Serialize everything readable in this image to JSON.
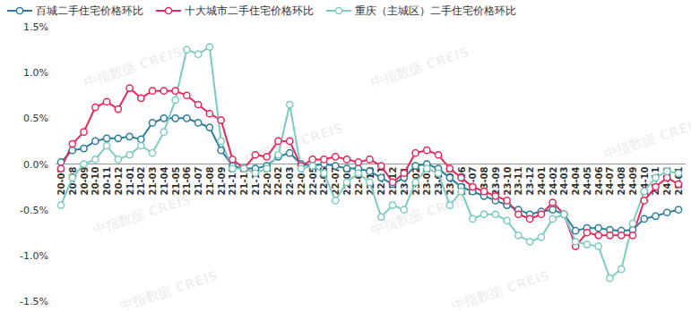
{
  "chart_data": {
    "type": "line",
    "watermark": "中指数据 CREIS",
    "categories": [
      "20-07",
      "20-08",
      "20-09",
      "20-10",
      "20-11",
      "20-12",
      "21-01",
      "21-02",
      "21-03",
      "21-04",
      "21-05",
      "21-06",
      "21-07",
      "21-08",
      "21-09",
      "21-10",
      "21-11",
      "21-12",
      "22-01",
      "22-02",
      "22-03",
      "22-04",
      "22-05",
      "22-06",
      "22-07",
      "22-08",
      "22-09",
      "22-10",
      "22-11",
      "22-12",
      "23-01",
      "23-02",
      "23-03",
      "23-04",
      "23-05",
      "23-06",
      "23-07",
      "23-08",
      "23-09",
      "23-10",
      "23-11",
      "23-12",
      "24-01",
      "24-02",
      "24-03",
      "24-04",
      "24-05",
      "24-06",
      "24-07",
      "24-08",
      "24-09",
      "24-10",
      "24-11",
      "24-12",
      "25-01"
    ],
    "series": [
      {
        "name": "百城二手住宅价格环比",
        "color": "#2b7d9c",
        "marker": "circle",
        "values": [
          0.02,
          0.15,
          0.17,
          0.25,
          0.28,
          0.28,
          0.3,
          0.27,
          0.45,
          0.5,
          0.5,
          0.5,
          0.45,
          0.4,
          0.15,
          -0.02,
          -0.05,
          -0.05,
          -0.02,
          0.08,
          0.12,
          0.0,
          -0.02,
          0.0,
          -0.02,
          -0.05,
          -0.05,
          -0.08,
          -0.15,
          -0.22,
          -0.15,
          -0.02,
          0.0,
          -0.05,
          -0.15,
          -0.25,
          -0.3,
          -0.35,
          -0.4,
          -0.45,
          -0.5,
          -0.55,
          -0.52,
          -0.5,
          -0.55,
          -0.73,
          -0.7,
          -0.7,
          -0.72,
          -0.73,
          -0.72,
          -0.6,
          -0.57,
          -0.53,
          -0.5
        ]
      },
      {
        "name": "十大城市二手住宅价格环比",
        "color": "#e8285a",
        "marker": "circle",
        "values": [
          -0.05,
          0.22,
          0.35,
          0.62,
          0.68,
          0.6,
          0.83,
          0.72,
          0.8,
          0.8,
          0.8,
          0.75,
          0.65,
          0.55,
          0.48,
          0.05,
          -0.05,
          0.1,
          0.08,
          0.25,
          0.25,
          -0.02,
          0.05,
          0.05,
          0.08,
          0.05,
          0.02,
          0.05,
          -0.02,
          -0.2,
          -0.1,
          0.12,
          0.15,
          0.1,
          -0.05,
          -0.15,
          -0.25,
          -0.3,
          -0.35,
          -0.4,
          -0.55,
          -0.6,
          -0.55,
          -0.42,
          -0.55,
          -0.9,
          -0.75,
          -0.78,
          -0.78,
          -0.78,
          -0.78,
          -0.4,
          -0.25,
          -0.15,
          -0.22
        ]
      },
      {
        "name": "重庆（主城区）二手住宅价格环比",
        "color": "#7ecbbe",
        "marker": "circle",
        "values": [
          -0.45,
          -0.15,
          0.0,
          0.05,
          0.2,
          0.05,
          0.1,
          0.2,
          0.12,
          0.35,
          0.7,
          1.25,
          1.2,
          1.28,
          0.25,
          -0.05,
          -0.05,
          -0.1,
          -0.05,
          0.1,
          0.65,
          -0.05,
          -0.02,
          -0.1,
          -0.4,
          -0.2,
          -0.1,
          -0.2,
          -0.58,
          -0.45,
          -0.5,
          -0.2,
          -0.05,
          -0.1,
          -0.45,
          -0.3,
          -0.6,
          -0.55,
          -0.55,
          -0.62,
          -0.78,
          -0.85,
          -0.8,
          -0.6,
          -0.55,
          -0.85,
          -0.88,
          -0.9,
          -1.25,
          -1.15,
          -0.65,
          -0.3,
          -0.15,
          -0.08,
          -0.1
        ]
      }
    ],
    "ylim": [
      -1.5,
      1.5
    ],
    "yticks": [
      {
        "value": -1.5,
        "label": "-1.5%"
      },
      {
        "value": -1.0,
        "label": "-1.0%"
      },
      {
        "value": -0.5,
        "label": "-0.5%"
      },
      {
        "value": 0,
        "label": "0.0%"
      },
      {
        "value": 0.5,
        "label": "0.5%"
      },
      {
        "value": 1.0,
        "label": "1.0%"
      },
      {
        "value": 1.5,
        "label": "1.5%"
      }
    ],
    "grid": false,
    "legend": "top"
  }
}
